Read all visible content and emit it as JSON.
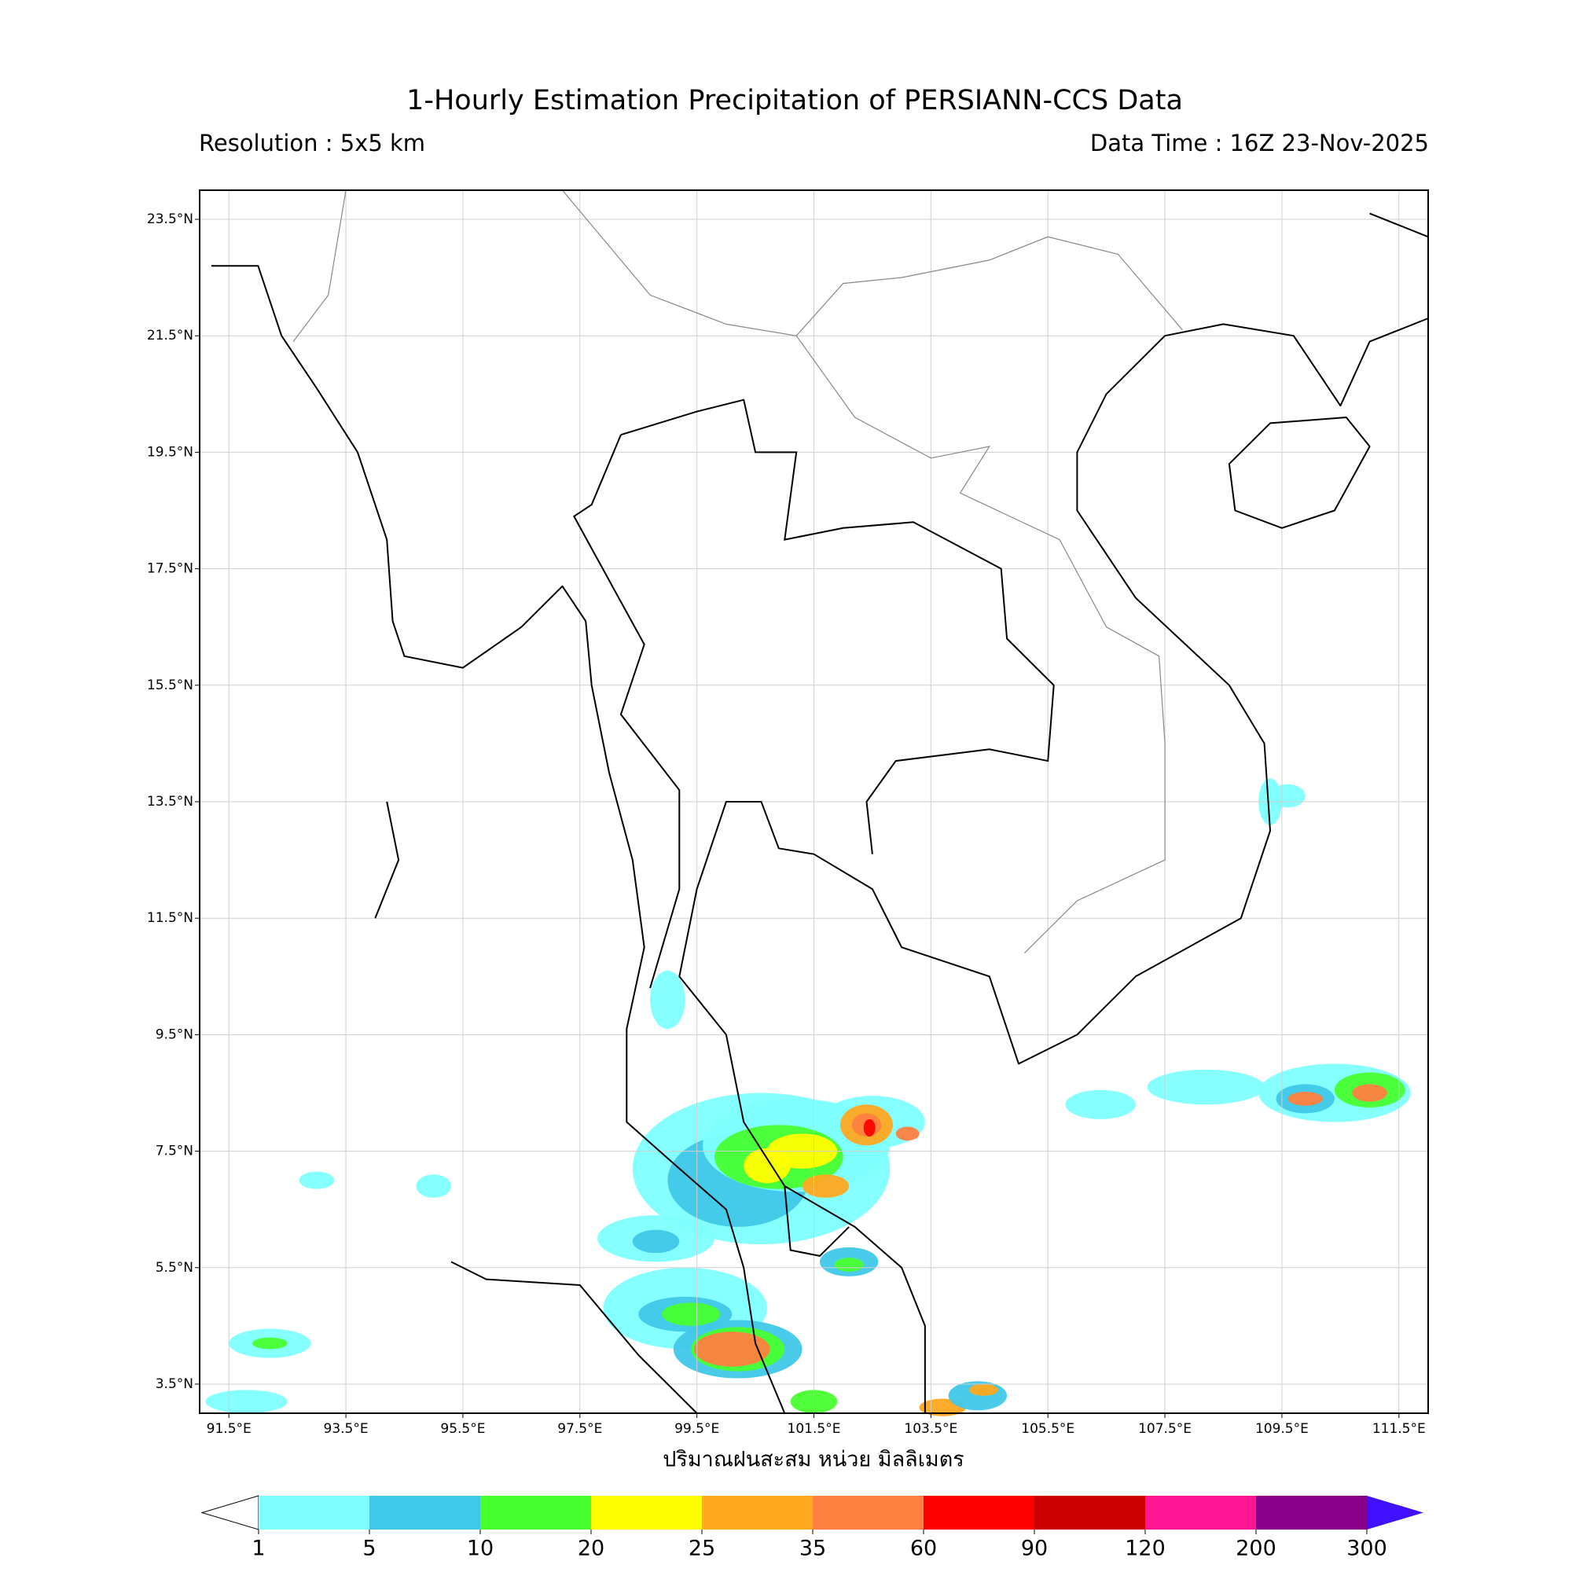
{
  "title": "1-Hourly Estimation Precipitation of PERSIANN-CCS Data",
  "resolution": "Resolution : 5x5 km",
  "data_time": "Data Time : 16Z 23-Nov-2025",
  "map": {
    "lon_range": [
      91,
      112
    ],
    "lat_range": [
      3,
      24
    ],
    "lon_ticks": [
      {
        "value": 91.5,
        "label": "91.5°E"
      },
      {
        "value": 93.5,
        "label": "93.5°E"
      },
      {
        "value": 95.5,
        "label": "95.5°E"
      },
      {
        "value": 97.5,
        "label": "97.5°E"
      },
      {
        "value": 99.5,
        "label": "99.5°E"
      },
      {
        "value": 101.5,
        "label": "101.5°E"
      },
      {
        "value": 103.5,
        "label": "103.5°E"
      },
      {
        "value": 105.5,
        "label": "105.5°E"
      },
      {
        "value": 107.5,
        "label": "107.5°E"
      },
      {
        "value": 109.5,
        "label": "109.5°E"
      },
      {
        "value": 111.5,
        "label": "111.5°E"
      }
    ],
    "lat_ticks": [
      {
        "value": 23.5,
        "label": "23.5°N"
      },
      {
        "value": 21.5,
        "label": "21.5°N"
      },
      {
        "value": 19.5,
        "label": "19.5°N"
      },
      {
        "value": 17.5,
        "label": "17.5°N"
      },
      {
        "value": 15.5,
        "label": "15.5°N"
      },
      {
        "value": 13.5,
        "label": "13.5°N"
      },
      {
        "value": 11.5,
        "label": "11.5°N"
      },
      {
        "value": 9.5,
        "label": "9.5°N"
      },
      {
        "value": 7.5,
        "label": "7.5°N"
      },
      {
        "value": 5.5,
        "label": "5.5°N"
      },
      {
        "value": 3.5,
        "label": "3.5°N"
      }
    ],
    "xlabel": "ปริมาณฝนสะสม หน่วย มิลลิเมตร"
  },
  "colorbar": {
    "levels": [
      1,
      5,
      10,
      20,
      25,
      35,
      60,
      90,
      120,
      200,
      300
    ],
    "colors": [
      "#80ffff",
      "#40c8e8",
      "#48ff30",
      "#ffff00",
      "#ffa820",
      "#ff8040",
      "#ff0000",
      "#cc0000",
      "#ff1493",
      "#8b008b"
    ],
    "under_color": "#ffffff",
    "over_color": "#4010ff"
  }
}
